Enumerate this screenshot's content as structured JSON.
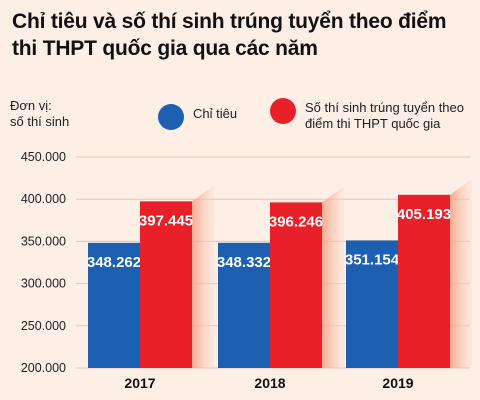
{
  "title": "Chỉ tiêu và số thí sinh trúng tuyển theo điểm thi THPT quốc gia qua các năm",
  "unit_label": "Đơn vị:\nsố thí sinh",
  "colors": {
    "quota": "#1d5fb0",
    "admitted": "#e8202a",
    "background": "#fdeee6"
  },
  "chart_data": {
    "type": "bar",
    "title": "Chỉ tiêu và số thí sinh trúng tuyển theo điểm thi THPT quốc gia qua các năm",
    "ylabel": "Đơn vị: số thí sinh",
    "xlabel": "",
    "categories": [
      "2017",
      "2018",
      "2019"
    ],
    "series": [
      {
        "name": "Chỉ tiêu",
        "values": [
          348262,
          348332,
          351154
        ],
        "labels": [
          "348.262",
          "348.332",
          "351.154"
        ]
      },
      {
        "name": "Số thí sinh trúng tuyển theo điểm thi THPT quốc gia",
        "values": [
          397445,
          396246,
          405193
        ],
        "labels": [
          "397.445",
          "396.246",
          "405.193"
        ]
      }
    ],
    "ylim": [
      200000,
      450000
    ],
    "yticks": [
      200000,
      250000,
      300000,
      350000,
      400000,
      450000
    ],
    "ytick_labels": [
      "200.000",
      "250.000",
      "300.000",
      "350.000",
      "400.000",
      "450.000"
    ],
    "grid": true,
    "legend_position": "top"
  }
}
